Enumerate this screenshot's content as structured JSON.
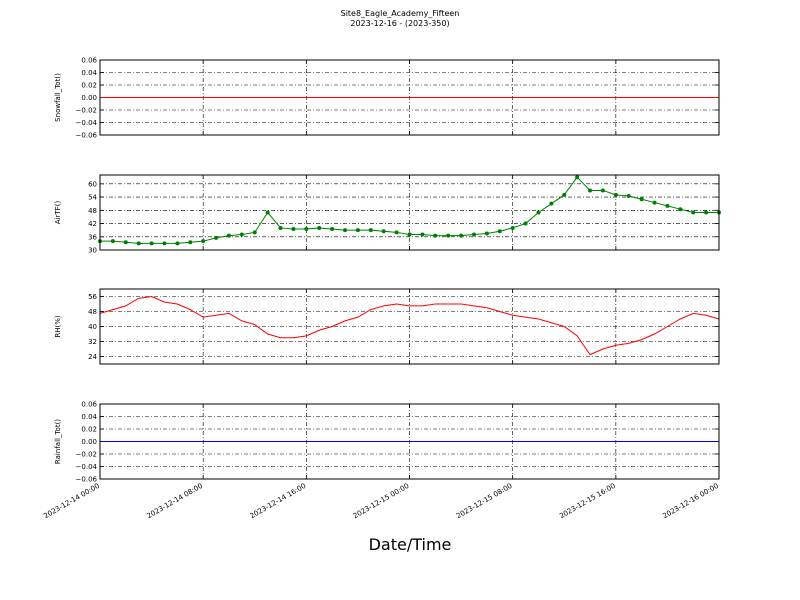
{
  "title": "Site8_Eagle_Academy_Fifteen",
  "subtitle": "2023-12-16 - (2023-350)",
  "xlabel": "Date/Time",
  "chart_data": [
    {
      "type": "line",
      "ylabel": "Snowfall_Tot()",
      "color": "#ff0000",
      "marker": false,
      "grid": true,
      "x": [
        "2023-12-14 00:00",
        "2023-12-16 00:00"
      ],
      "values": [
        0,
        0
      ],
      "xlim": [
        "2023-12-14 00:00",
        "2023-12-16 00:00"
      ],
      "xticks": [
        "2023-12-14 00:00",
        "2023-12-14 08:00",
        "2023-12-14 16:00",
        "2023-12-15 00:00",
        "2023-12-15 08:00",
        "2023-12-15 16:00",
        "2023-12-16 00:00"
      ],
      "ylim": [
        -0.06,
        0.06
      ],
      "yticks": [
        {
          "value": -0.06,
          "label": "−0.06"
        },
        {
          "value": -0.04,
          "label": "−0.04"
        },
        {
          "value": -0.02,
          "label": "−0.02"
        },
        {
          "value": 0,
          "label": "0.00"
        },
        {
          "value": 0.02,
          "label": "0.02"
        },
        {
          "value": 0.04,
          "label": "0.04"
        },
        {
          "value": 0.06,
          "label": "0.06"
        }
      ]
    },
    {
      "type": "line",
      "ylabel": "AirTF()",
      "color": "#008000",
      "marker": true,
      "grid": true,
      "x": [
        "2023-12-14 00:00",
        "2023-12-14 01:00",
        "2023-12-14 02:00",
        "2023-12-14 03:00",
        "2023-12-14 04:00",
        "2023-12-14 05:00",
        "2023-12-14 06:00",
        "2023-12-14 07:00",
        "2023-12-14 08:00",
        "2023-12-14 09:00",
        "2023-12-14 10:00",
        "2023-12-14 11:00",
        "2023-12-14 12:00",
        "2023-12-14 13:00",
        "2023-12-14 14:00",
        "2023-12-14 15:00",
        "2023-12-14 16:00",
        "2023-12-14 17:00",
        "2023-12-14 18:00",
        "2023-12-14 19:00",
        "2023-12-14 20:00",
        "2023-12-14 21:00",
        "2023-12-14 22:00",
        "2023-12-14 23:00",
        "2023-12-15 00:00",
        "2023-12-15 01:00",
        "2023-12-15 02:00",
        "2023-12-15 03:00",
        "2023-12-15 04:00",
        "2023-12-15 05:00",
        "2023-12-15 06:00",
        "2023-12-15 07:00",
        "2023-12-15 08:00",
        "2023-12-15 09:00",
        "2023-12-15 10:00",
        "2023-12-15 11:00",
        "2023-12-15 12:00",
        "2023-12-15 13:00",
        "2023-12-15 14:00",
        "2023-12-15 15:00",
        "2023-12-15 16:00",
        "2023-12-15 17:00",
        "2023-12-15 18:00",
        "2023-12-15 19:00",
        "2023-12-15 20:00",
        "2023-12-15 21:00",
        "2023-12-15 22:00",
        "2023-12-15 23:00",
        "2023-12-16 00:00"
      ],
      "values": [
        34,
        34,
        33.5,
        33,
        33,
        33,
        33,
        33.5,
        34,
        35.5,
        36.5,
        37,
        38,
        47,
        40,
        39.5,
        39.5,
        40,
        39.5,
        39,
        39,
        39,
        38.5,
        38,
        37,
        37,
        36.5,
        36.5,
        36.5,
        37,
        37.5,
        38.5,
        40,
        42,
        47,
        51,
        55,
        63,
        57,
        57,
        55,
        54.5,
        53,
        51.5,
        50,
        48.5,
        47,
        47,
        47
      ],
      "xlim": [
        "2023-12-14 00:00",
        "2023-12-16 00:00"
      ],
      "xticks": [
        "2023-12-14 00:00",
        "2023-12-14 08:00",
        "2023-12-14 16:00",
        "2023-12-15 00:00",
        "2023-12-15 08:00",
        "2023-12-15 16:00",
        "2023-12-16 00:00"
      ],
      "ylim": [
        30,
        64
      ],
      "yticks": [
        30,
        36,
        42,
        48,
        54,
        60
      ]
    },
    {
      "type": "line",
      "ylabel": "RH(%)",
      "color": "#ff0000",
      "marker": false,
      "grid": true,
      "x": [
        "2023-12-14 00:00",
        "2023-12-14 01:00",
        "2023-12-14 02:00",
        "2023-12-14 03:00",
        "2023-12-14 04:00",
        "2023-12-14 05:00",
        "2023-12-14 06:00",
        "2023-12-14 07:00",
        "2023-12-14 08:00",
        "2023-12-14 09:00",
        "2023-12-14 10:00",
        "2023-12-14 11:00",
        "2023-12-14 12:00",
        "2023-12-14 13:00",
        "2023-12-14 14:00",
        "2023-12-14 15:00",
        "2023-12-14 16:00",
        "2023-12-14 17:00",
        "2023-12-14 18:00",
        "2023-12-14 19:00",
        "2023-12-14 20:00",
        "2023-12-14 21:00",
        "2023-12-14 22:00",
        "2023-12-14 23:00",
        "2023-12-15 00:00",
        "2023-12-15 01:00",
        "2023-12-15 02:00",
        "2023-12-15 03:00",
        "2023-12-15 04:00",
        "2023-12-15 05:00",
        "2023-12-15 06:00",
        "2023-12-15 07:00",
        "2023-12-15 08:00",
        "2023-12-15 09:00",
        "2023-12-15 10:00",
        "2023-12-15 11:00",
        "2023-12-15 12:00",
        "2023-12-15 13:00",
        "2023-12-15 14:00",
        "2023-12-15 15:00",
        "2023-12-15 16:00",
        "2023-12-15 17:00",
        "2023-12-15 18:00",
        "2023-12-15 19:00",
        "2023-12-15 20:00",
        "2023-12-15 21:00",
        "2023-12-15 22:00",
        "2023-12-15 23:00",
        "2023-12-16 00:00"
      ],
      "values": [
        47,
        49,
        51,
        55,
        56,
        53,
        52,
        49,
        45,
        46,
        47,
        43,
        41,
        36,
        34,
        34,
        35,
        38,
        40,
        43,
        45,
        49,
        51,
        52,
        51,
        51,
        52,
        52,
        52,
        51,
        50,
        48,
        46,
        45,
        44,
        42,
        40,
        35,
        25,
        28,
        30,
        31,
        33,
        36,
        40,
        44,
        47,
        46,
        44
      ],
      "xlim": [
        "2023-12-14 00:00",
        "2023-12-16 00:00"
      ],
      "xticks": [
        "2023-12-14 00:00",
        "2023-12-14 08:00",
        "2023-12-14 16:00",
        "2023-12-15 00:00",
        "2023-12-15 08:00",
        "2023-12-15 16:00",
        "2023-12-16 00:00"
      ],
      "ylim": [
        20,
        60
      ],
      "yticks": [
        24,
        32,
        40,
        48,
        56
      ]
    },
    {
      "type": "line",
      "ylabel": "Rainfall_Tot()",
      "color": "#0000ff",
      "marker": false,
      "grid": true,
      "x": [
        "2023-12-14 00:00",
        "2023-12-16 00:00"
      ],
      "values": [
        0,
        0
      ],
      "xlim": [
        "2023-12-14 00:00",
        "2023-12-16 00:00"
      ],
      "xticks": [
        "2023-12-14 00:00",
        "2023-12-14 08:00",
        "2023-12-14 16:00",
        "2023-12-15 00:00",
        "2023-12-15 08:00",
        "2023-12-15 16:00",
        "2023-12-16 00:00"
      ],
      "ylim": [
        -0.06,
        0.06
      ],
      "yticks": [
        {
          "value": -0.06,
          "label": "−0.06"
        },
        {
          "value": -0.04,
          "label": "−0.04"
        },
        {
          "value": -0.02,
          "label": "−0.02"
        },
        {
          "value": 0,
          "label": "0.00"
        },
        {
          "value": 0.02,
          "label": "0.02"
        },
        {
          "value": 0.04,
          "label": "0.04"
        },
        {
          "value": 0.06,
          "label": "0.06"
        }
      ]
    }
  ]
}
